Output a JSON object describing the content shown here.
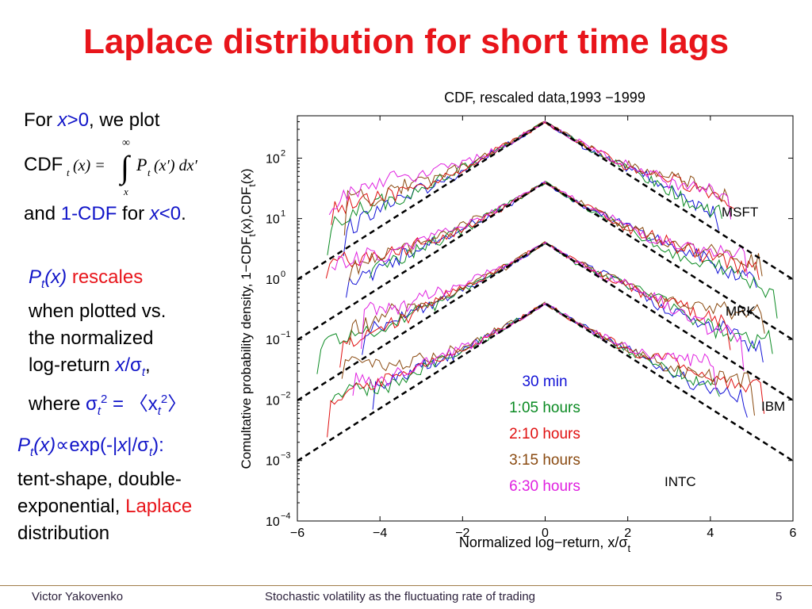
{
  "slide": {
    "title": "Laplace distribution for short time lags",
    "page_number": "5"
  },
  "left_text": {
    "line1_pre": "For ",
    "line1_x": "x",
    "line1_gt0": ">0",
    "line1_post": ", we plot",
    "cdf_label": "CDF",
    "formula_sub_t": "t",
    "formula_lhs": "(x) =",
    "formula_upper": "∞",
    "formula_lower": "x",
    "formula_integral": "∫",
    "formula_P": "P",
    "formula_rhs": "(x′) dx′",
    "line3_pre": "and ",
    "line3_cdf": "1-CDF",
    "line3_mid": " for ",
    "line3_x": "x",
    "line3_lt0": "<0",
    "line3_end": ".",
    "p1_P": "P",
    "p1_t": "t",
    "p1_x": "(x)",
    "p1_rescales": " rescales",
    "p1_line2": "when plotted vs.",
    "p1_line3": "the normalized",
    "p1_line4_pre": "log-return ",
    "p1_line4_x": "x",
    "p1_line4_slash": "/σ",
    "p1_line4_t": "t",
    "p1_line4_end": ",",
    "p1_line5_pre": "where ",
    "p1_line5_sigma": "σ",
    "p1_line5_t": "t",
    "p1_line5_sq": "2",
    "p1_line5_eq": " = 〈x",
    "p1_line5_t2": "t",
    "p1_line5_sq2": "2",
    "p1_line5_end": "〉",
    "p2_P": "P",
    "p2_t": "t",
    "p2_x": "(x)",
    "p2_prop": "∝exp(-|",
    "p2_x2": "x",
    "p2_slash": "|/σ",
    "p2_t2": "t",
    "p2_close": "):",
    "p2_line2": "tent-shape, double-",
    "p2_line3_pre": "exponential, ",
    "p2_laplace": "Laplace",
    "p2_line4": "distribution"
  },
  "footer": {
    "author": "Victor Yakovenko",
    "talk_title": "Stochastic volatility as the fluctuating rate of trading"
  },
  "chart_data": {
    "type": "line",
    "title": "CDF, rescaled data,1993 −1999",
    "xlabel": "Normalized log−return, x/σ",
    "xlabel_sub": "t",
    "ylabel": "Comultative probability density, 1−CDF",
    "ylabel_sub1": "t",
    "ylabel_mid": "(x),CDF",
    "ylabel_sub2": "t",
    "ylabel_end": "(x)",
    "xlim": [
      -6,
      6
    ],
    "ylim_exp": [
      -4,
      2.7
    ],
    "yscale": "log",
    "x_ticks": [
      -6,
      -4,
      -2,
      0,
      2,
      4,
      6
    ],
    "x_tick_labels": [
      "−6",
      "−4",
      "−2",
      "0",
      "2",
      "4",
      "6"
    ],
    "y_tick_exponents": [
      -4,
      -3,
      -2,
      -1,
      0,
      1,
      2
    ],
    "y_tick_labels": [
      "10",
      "10",
      "10",
      "10",
      "10",
      "10",
      "10"
    ],
    "y_tick_exp_labels": [
      "−4",
      "−3",
      "−2",
      "−1",
      "0",
      "1",
      "2"
    ],
    "stocks": [
      {
        "name": "MSFT",
        "peak_log10": 2.6
      },
      {
        "name": "MRK",
        "peak_log10": 1.6
      },
      {
        "name": "IBM",
        "peak_log10": 0.6
      },
      {
        "name": "INTC",
        "peak_log10": -0.4
      }
    ],
    "laplace_slope_log10_per_unit": 0.4343,
    "legend": [
      {
        "label": "30 min",
        "color": "#1212d6"
      },
      {
        "label": "1:05 hours",
        "color": "#0a8a22"
      },
      {
        "label": "2:10 hours",
        "color": "#e01010"
      },
      {
        "label": "3:15 hours",
        "color": "#8a4a10"
      },
      {
        "label": "6:30 hours",
        "color": "#e020e0"
      }
    ],
    "fit_line_color": "#000000",
    "grid": false,
    "legend_placement": "inside-lower-right"
  }
}
